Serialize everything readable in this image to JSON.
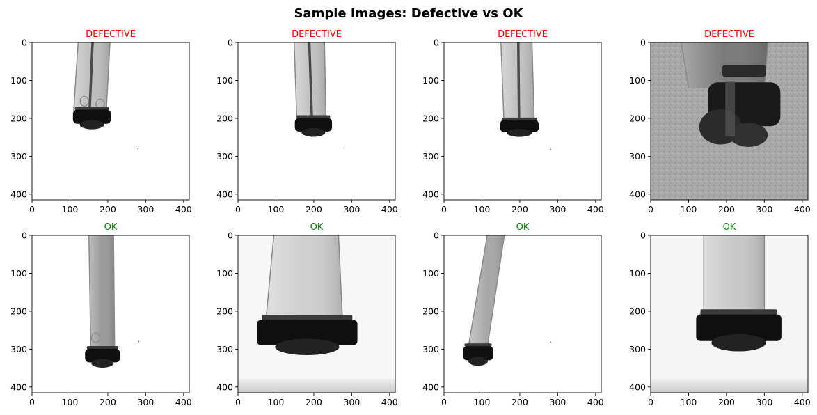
{
  "figure": {
    "title": "Sample Images: Defective vs OK"
  },
  "chart_data": [
    {
      "type": "image",
      "title": "DEFECTIVE",
      "title_color": "#ff0000",
      "xlim": [
        0,
        415
      ],
      "ylim": [
        415,
        0
      ],
      "xticks": [
        0,
        100,
        200,
        300,
        400
      ],
      "yticks": [
        0,
        100,
        200,
        300,
        400
      ],
      "image": {
        "background": "white",
        "tube_color": "#bdbdbd",
        "tube_top_x": [
          122,
          206
        ],
        "tube_bottom_x": [
          110,
          196
        ],
        "tube_bottom_y": 180,
        "center_line_x": [
          160,
          152
        ],
        "cap": {
          "x": [
            108,
            208
          ],
          "y": [
            170,
            230
          ]
        },
        "ovals": [
          {
            "cx": 138,
            "cy": 155
          },
          {
            "cx": 180,
            "cy": 162
          }
        ],
        "speck": {
          "x": 280,
          "y": 280
        }
      }
    },
    {
      "type": "image",
      "title": "DEFECTIVE",
      "title_color": "#ff0000",
      "xlim": [
        0,
        415
      ],
      "ylim": [
        415,
        0
      ],
      "xticks": [
        0,
        100,
        200,
        300,
        400
      ],
      "yticks": [
        0,
        100,
        200,
        300,
        400
      ],
      "image": {
        "background": "white",
        "tube_color": "#c2c2c2",
        "tube_top_x": [
          148,
          228
        ],
        "tube_bottom_x": [
          155,
          232
        ],
        "tube_bottom_y": 200,
        "center_line_x": [
          188,
          195
        ],
        "cap": {
          "x": [
            150,
            248
          ],
          "y": [
            192,
            250
          ]
        },
        "ovals": [],
        "speck": {
          "x": 280,
          "y": 278
        }
      }
    },
    {
      "type": "image",
      "title": "DEFECTIVE",
      "title_color": "#ff0000",
      "xlim": [
        0,
        415
      ],
      "ylim": [
        415,
        0
      ],
      "xticks": [
        0,
        100,
        200,
        300,
        400
      ],
      "yticks": [
        0,
        100,
        200,
        300,
        400
      ],
      "image": {
        "background": "white",
        "tube_color": "#c0c0c0",
        "tube_top_x": [
          150,
          232
        ],
        "tube_bottom_x": [
          158,
          238
        ],
        "tube_bottom_y": 205,
        "center_line_x": [
          196,
          198
        ],
        "cap": {
          "x": [
            148,
            250
          ],
          "y": [
            198,
            250
          ]
        },
        "ovals": [],
        "speck": {
          "x": 282,
          "y": 282
        }
      }
    },
    {
      "type": "image",
      "title": "DEFECTIVE",
      "title_color": "#ff0000",
      "xlim": [
        0,
        415
      ],
      "ylim": [
        415,
        0
      ],
      "xticks": [
        0,
        100,
        200,
        300,
        400
      ],
      "yticks": [
        0,
        100,
        200,
        300,
        400
      ],
      "image": {
        "background": "#a8a8a8",
        "tube_color": "#7a7a7a",
        "tube_top_x": [
          80,
          310
        ],
        "tube_bottom_x": [
          100,
          300
        ],
        "tube_bottom_y": 120,
        "center_line_x": null,
        "cap": {
          "x": [
            100,
            355
          ],
          "y": [
            80,
            290
          ]
        },
        "ovals": [],
        "speck": null
      }
    },
    {
      "type": "image",
      "title": "OK",
      "title_color": "#008000",
      "xlim": [
        0,
        415
      ],
      "ylim": [
        415,
        0
      ],
      "xticks": [
        0,
        100,
        200,
        300,
        400
      ],
      "yticks": [
        0,
        100,
        200,
        300,
        400
      ],
      "image": {
        "background": "white",
        "tube_color": "#9a9a9a",
        "tube_top_x": [
          150,
          215
        ],
        "tube_bottom_x": [
          155,
          218
        ],
        "tube_bottom_y": 300,
        "center_line_x": null,
        "cap": {
          "x": [
            140,
            232
          ],
          "y": [
            292,
            350
          ]
        },
        "ovals": [
          {
            "cx": 168,
            "cy": 270
          }
        ],
        "speck": {
          "x": 282,
          "y": 280
        }
      }
    },
    {
      "type": "image",
      "title": "OK",
      "title_color": "#008000",
      "xlim": [
        0,
        415
      ],
      "ylim": [
        415,
        0
      ],
      "xticks": [
        0,
        100,
        200,
        300,
        400
      ],
      "yticks": [
        0,
        100,
        200,
        300,
        400
      ],
      "image": {
        "background": "#f7f7f7",
        "tube_color": "#cfcfcf",
        "tube_top_x": [
          95,
          265
        ],
        "tube_bottom_x": [
          75,
          275
        ],
        "tube_bottom_y": 210,
        "center_line_x": null,
        "cap": {
          "x": [
            50,
            315
          ],
          "y": [
            210,
            318
          ]
        },
        "ovals": [],
        "speck": null,
        "bottom_band": true
      }
    },
    {
      "type": "image",
      "title": "OK",
      "title_color": "#008000",
      "xlim": [
        0,
        415
      ],
      "ylim": [
        415,
        0
      ],
      "xticks": [
        0,
        100,
        200,
        300,
        400
      ],
      "yticks": [
        0,
        100,
        200,
        300,
        400
      ],
      "image": {
        "background": "white",
        "tube_color": "#a8a8a8",
        "tube_top_x": [
          115,
          160
        ],
        "tube_bottom_x": [
          65,
          115
        ],
        "tube_bottom_y": 290,
        "center_line_x": null,
        "cap": {
          "x": [
            50,
            130
          ],
          "y": [
            285,
            345
          ]
        },
        "ovals": [],
        "speck": {
          "x": 282,
          "y": 282
        }
      }
    },
    {
      "type": "image",
      "title": "OK",
      "title_color": "#008000",
      "xlim": [
        0,
        415
      ],
      "ylim": [
        415,
        0
      ],
      "xticks": [
        0,
        100,
        200,
        300,
        400
      ],
      "yticks": [
        0,
        100,
        200,
        300,
        400
      ],
      "image": {
        "background": "#f5f5f5",
        "tube_color": "#c8c8c8",
        "tube_top_x": [
          140,
          300
        ],
        "tube_bottom_x": [
          140,
          300
        ],
        "tube_bottom_y": 200,
        "center_line_x": null,
        "cap": {
          "x": [
            120,
            345
          ],
          "y": [
            195,
            308
          ]
        },
        "ovals": [],
        "speck": null,
        "bottom_band": true
      }
    }
  ]
}
